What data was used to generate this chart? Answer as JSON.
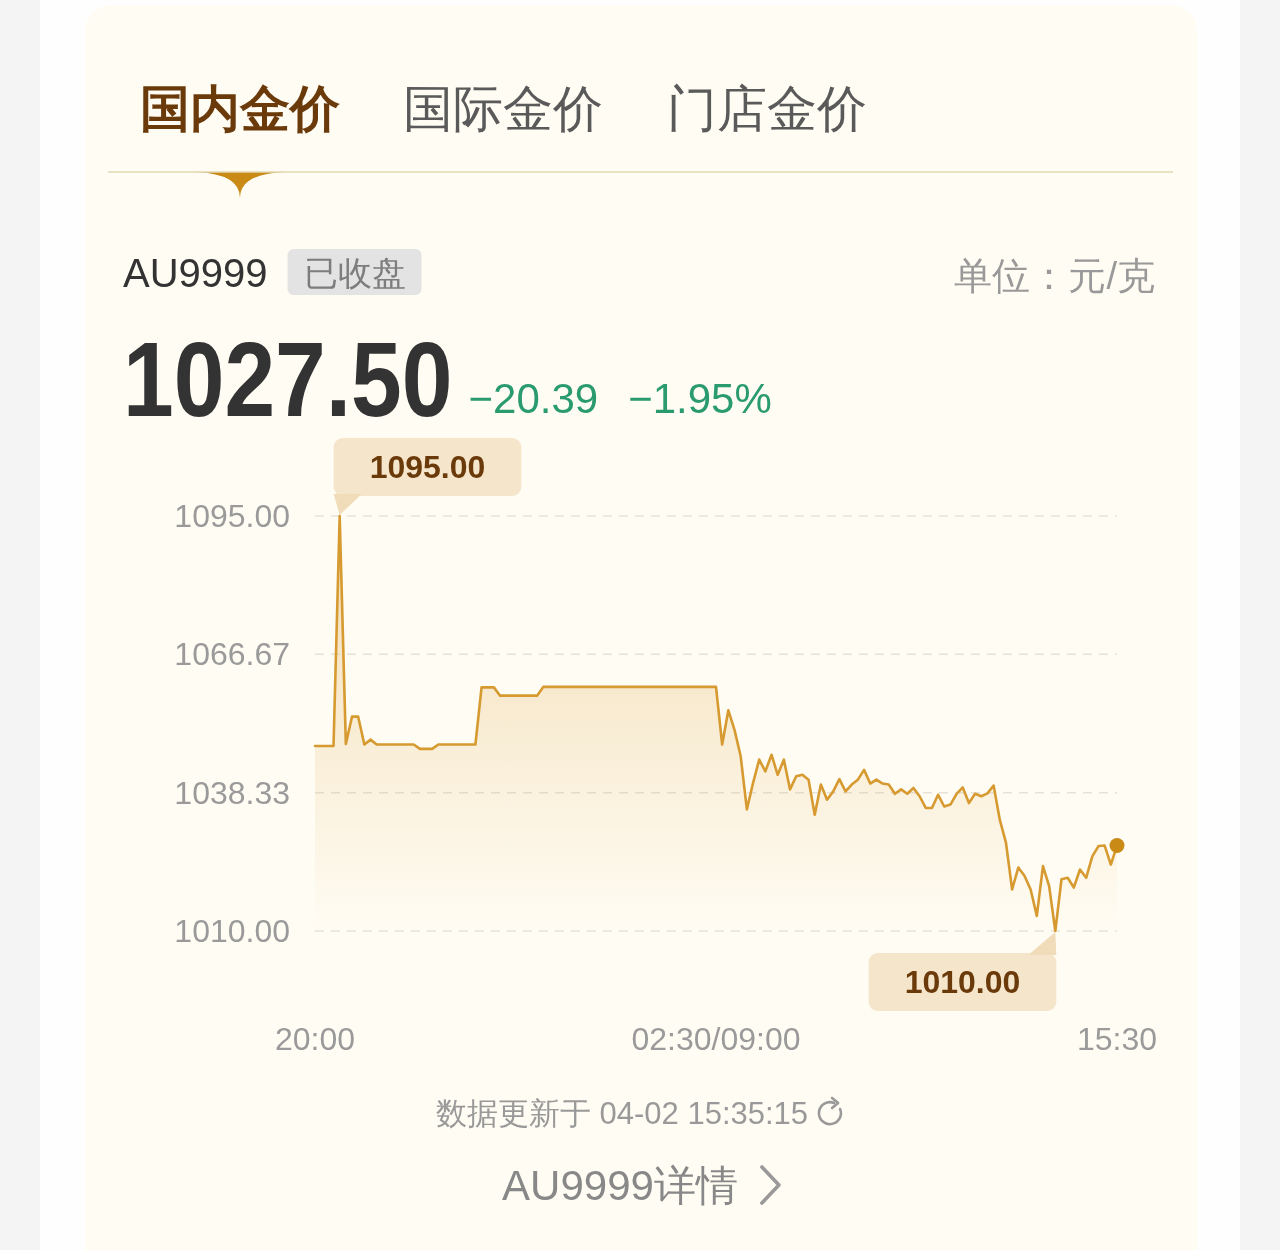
{
  "chart_data": {
    "type": "area",
    "title": "AU9999",
    "annotations": [
      "国内金价",
      "国际金价",
      "门店金价",
      "已收盘",
      "单位：元/克",
      "1027.50",
      "−20.39",
      "−1.95%",
      "1095.00",
      {
        "text": "1010.00",
        "y": 1010.0
      },
      "数据更新于 04-02 15:35:15",
      "AU9999详情"
    ],
    "categories": [
      "20:00",
      null,
      null,
      null,
      null,
      null,
      null,
      null,
      null,
      null,
      null,
      null,
      null,
      null,
      null,
      null,
      null,
      null,
      null,
      null,
      null,
      null,
      null,
      null,
      null,
      null,
      null,
      null,
      null,
      null,
      null,
      null,
      null,
      null,
      null,
      null,
      null,
      null,
      null,
      null,
      null,
      null,
      null,
      null,
      null,
      null,
      null,
      null,
      null,
      null,
      null,
      null,
      null,
      null,
      null,
      null,
      null,
      null,
      null,
      null,
      null,
      null,
      null,
      null,
      null,
      "02:30/09:00",
      null,
      null,
      null,
      null,
      null,
      null,
      null,
      null,
      null,
      null,
      null,
      null,
      null,
      null,
      null,
      null,
      null,
      null,
      null,
      null,
      null,
      null,
      null,
      null,
      null,
      null,
      null,
      null,
      null,
      null,
      null,
      null,
      null,
      null,
      null,
      null,
      null,
      null,
      null,
      null,
      null,
      null,
      null,
      null,
      null,
      null,
      null,
      null,
      null,
      null,
      null,
      null,
      null,
      null,
      null,
      null,
      null,
      null,
      null,
      null,
      null,
      null,
      null,
      null,
      "15:30"
    ],
    "ylim": [
      1010,
      1095
    ],
    "yticks": [
      {
        "value": 1010,
        "label": "1010.00"
      },
      {
        "value": 1038.33,
        "label": "1038.33"
      },
      {
        "value": 1066.67,
        "label": "1066.67"
      },
      {
        "value": 1095,
        "label": "1095.00"
      }
    ],
    "grid": "y",
    "series": [
      {
        "color": "#d69a30",
        "values": [
          1047.9,
          1047.9,
          1047.9,
          1047.9,
          1095.0,
          1048.3,
          1053.9,
          1053.9,
          1048.2,
          1049.2,
          1048.2,
          1048.2,
          1048.2,
          1048.2,
          1048.2,
          1048.2,
          1048.2,
          1047.3,
          1047.3,
          1047.3,
          1048.2,
          1048.2,
          1048.2,
          1048.2,
          1048.2,
          1048.2,
          1048.2,
          1059.9,
          1059.9,
          1059.9,
          1058.2,
          1058.2,
          1058.2,
          1058.2,
          1058.2,
          1058.2,
          1058.2,
          1060.0,
          1060.0,
          1060.0,
          1060.0,
          1060.0,
          1060.0,
          1060.0,
          1060.0,
          1060.0,
          1060.0,
          1060.0,
          1060.0,
          1060.0,
          1060.0,
          1060.0,
          1060.0,
          1060.0,
          1060.0,
          1060.0,
          1060.0,
          1060.0,
          1060.0,
          1060.0,
          1060.0,
          1060.0,
          1060.0,
          1060.0,
          1060.0,
          1060.0,
          1048.2,
          1055.2,
          1051.2,
          1045.8,
          1034.9,
          1040.3,
          1045.1,
          1042.7,
          1046.1,
          1042.0,
          1045.1,
          1039.0,
          1041.7,
          1042.0,
          1041.0,
          1033.8,
          1040.0,
          1036.9,
          1038.6,
          1041.1,
          1038.6,
          1040.0,
          1041.0,
          1043.0,
          1040.2,
          1041.0,
          1040.2,
          1040.0,
          1038.1,
          1039.0,
          1038.1,
          1039.3,
          1037.6,
          1035.2,
          1035.2,
          1037.9,
          1035.5,
          1035.9,
          1038.1,
          1039.4,
          1036.2,
          1038.1,
          1037.6,
          1038.2,
          1039.8,
          1032.8,
          1028.1,
          1018.5,
          1023.0,
          1021.3,
          1018.5,
          1013.1,
          1023.3,
          1019.2,
          1010.0,
          1020.6,
          1020.9,
          1018.9,
          1022.6,
          1020.9,
          1025.3,
          1027.4,
          1027.5,
          1023.6,
          1027.5
        ]
      },
      {
        "type": "scatter",
        "color": "#c98a16",
        "values": [
          null,
          null,
          null,
          null,
          null,
          null,
          null,
          null,
          null,
          null,
          null,
          null,
          null,
          null,
          null,
          null,
          null,
          null,
          null,
          null,
          null,
          null,
          null,
          null,
          null,
          null,
          null,
          null,
          null,
          null,
          null,
          null,
          null,
          null,
          null,
          null,
          null,
          null,
          null,
          null,
          null,
          null,
          null,
          null,
          null,
          null,
          null,
          null,
          null,
          null,
          null,
          null,
          null,
          null,
          null,
          null,
          null,
          null,
          null,
          null,
          null,
          null,
          null,
          null,
          null,
          null,
          null,
          null,
          null,
          null,
          null,
          null,
          null,
          null,
          null,
          null,
          null,
          null,
          null,
          null,
          null,
          null,
          null,
          null,
          null,
          null,
          null,
          null,
          null,
          null,
          null,
          null,
          null,
          null,
          null,
          null,
          null,
          null,
          null,
          null,
          null,
          null,
          null,
          null,
          null,
          null,
          null,
          null,
          null,
          null,
          null,
          null,
          null,
          null,
          null,
          null,
          null,
          null,
          null,
          null,
          null,
          null,
          null,
          null,
          null,
          null,
          null,
          null,
          null,
          null,
          1027.5
        ]
      }
    ]
  }
}
